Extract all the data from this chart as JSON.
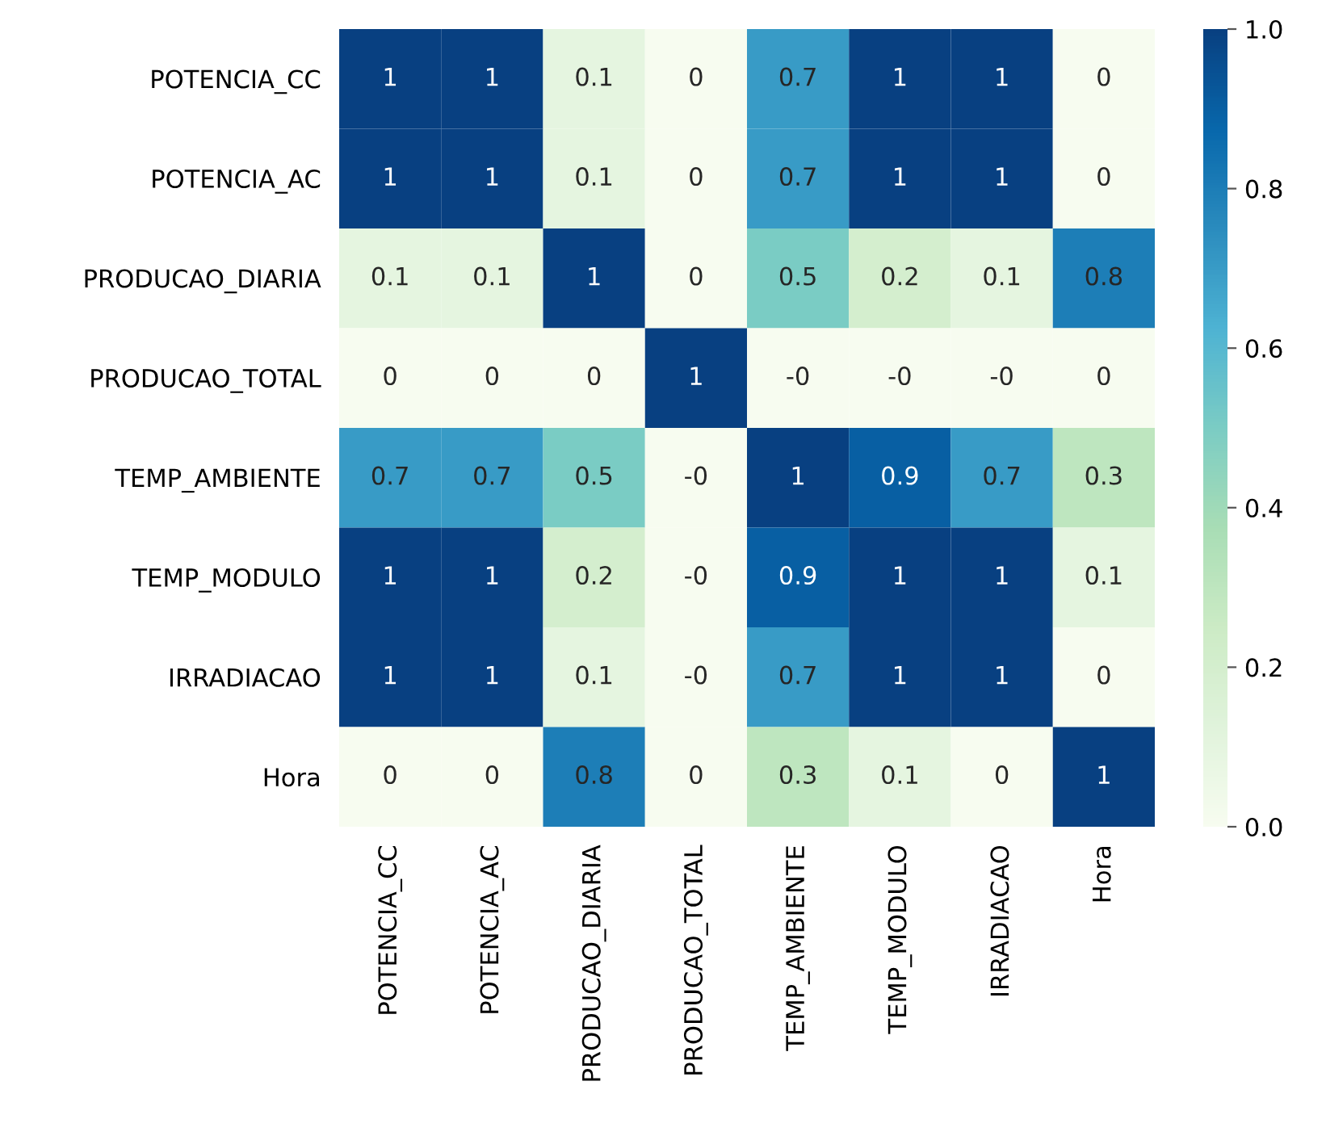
{
  "chart_data": {
    "type": "heatmap",
    "categories": [
      "POTENCIA_CC",
      "POTENCIA_AC",
      "PRODUCAO_DIARIA",
      "PRODUCAO_TOTAL",
      "TEMP_AMBIENTE",
      "TEMP_MODULO",
      "IRRADIACAO",
      "Hora"
    ],
    "y_categories": [
      "POTENCIA_CC",
      "POTENCIA_AC",
      "PRODUCAO_DIARIA",
      "PRODUCAO_TOTAL",
      "TEMP_AMBIENTE",
      "TEMP_MODULO",
      "IRRADIACAO",
      "Hora"
    ],
    "cells": [
      [
        1,
        1,
        0.1,
        0,
        0.7,
        1,
        1,
        0
      ],
      [
        1,
        1,
        0.1,
        0,
        0.7,
        1,
        1,
        0
      ],
      [
        0.1,
        0.1,
        1,
        0,
        0.5,
        0.2,
        0.1,
        0.8
      ],
      [
        0,
        0,
        0,
        1,
        0,
        0,
        0,
        0
      ],
      [
        0.7,
        0.7,
        0.5,
        0,
        1,
        0.9,
        0.7,
        0.3
      ],
      [
        1,
        1,
        0.2,
        0,
        0.9,
        1,
        1,
        0.1
      ],
      [
        1,
        1,
        0.1,
        0,
        0.7,
        1,
        1,
        0
      ],
      [
        0,
        0,
        0.8,
        0,
        0.3,
        0.1,
        0,
        1
      ]
    ],
    "cell_labels": [
      [
        "1",
        "1",
        "0.1",
        "0",
        "0.7",
        "1",
        "1",
        "0"
      ],
      [
        "1",
        "1",
        "0.1",
        "0",
        "0.7",
        "1",
        "1",
        "0"
      ],
      [
        "0.1",
        "0.1",
        "1",
        "0",
        "0.5",
        "0.2",
        "0.1",
        "0.8"
      ],
      [
        "0",
        "0",
        "0",
        "1",
        "-0",
        "-0",
        "-0",
        "0"
      ],
      [
        "0.7",
        "0.7",
        "0.5",
        "-0",
        "1",
        "0.9",
        "0.7",
        "0.3"
      ],
      [
        "1",
        "1",
        "0.2",
        "-0",
        "0.9",
        "1",
        "1",
        "0.1"
      ],
      [
        "1",
        "1",
        "0.1",
        "-0",
        "0.7",
        "1",
        "1",
        "0"
      ],
      [
        "0",
        "0",
        "0.8",
        "0",
        "0.3",
        "0.1",
        "0",
        "1"
      ]
    ],
    "clim": [
      0,
      1
    ],
    "cticks": [
      {
        "value": 0,
        "label": "0.0"
      },
      {
        "value": 0.2,
        "label": "0.2"
      },
      {
        "value": 0.4,
        "label": "0.4"
      },
      {
        "value": 0.6,
        "label": "0.6"
      },
      {
        "value": 0.8,
        "label": "0.8"
      },
      {
        "value": 1,
        "label": "1.0"
      }
    ]
  }
}
